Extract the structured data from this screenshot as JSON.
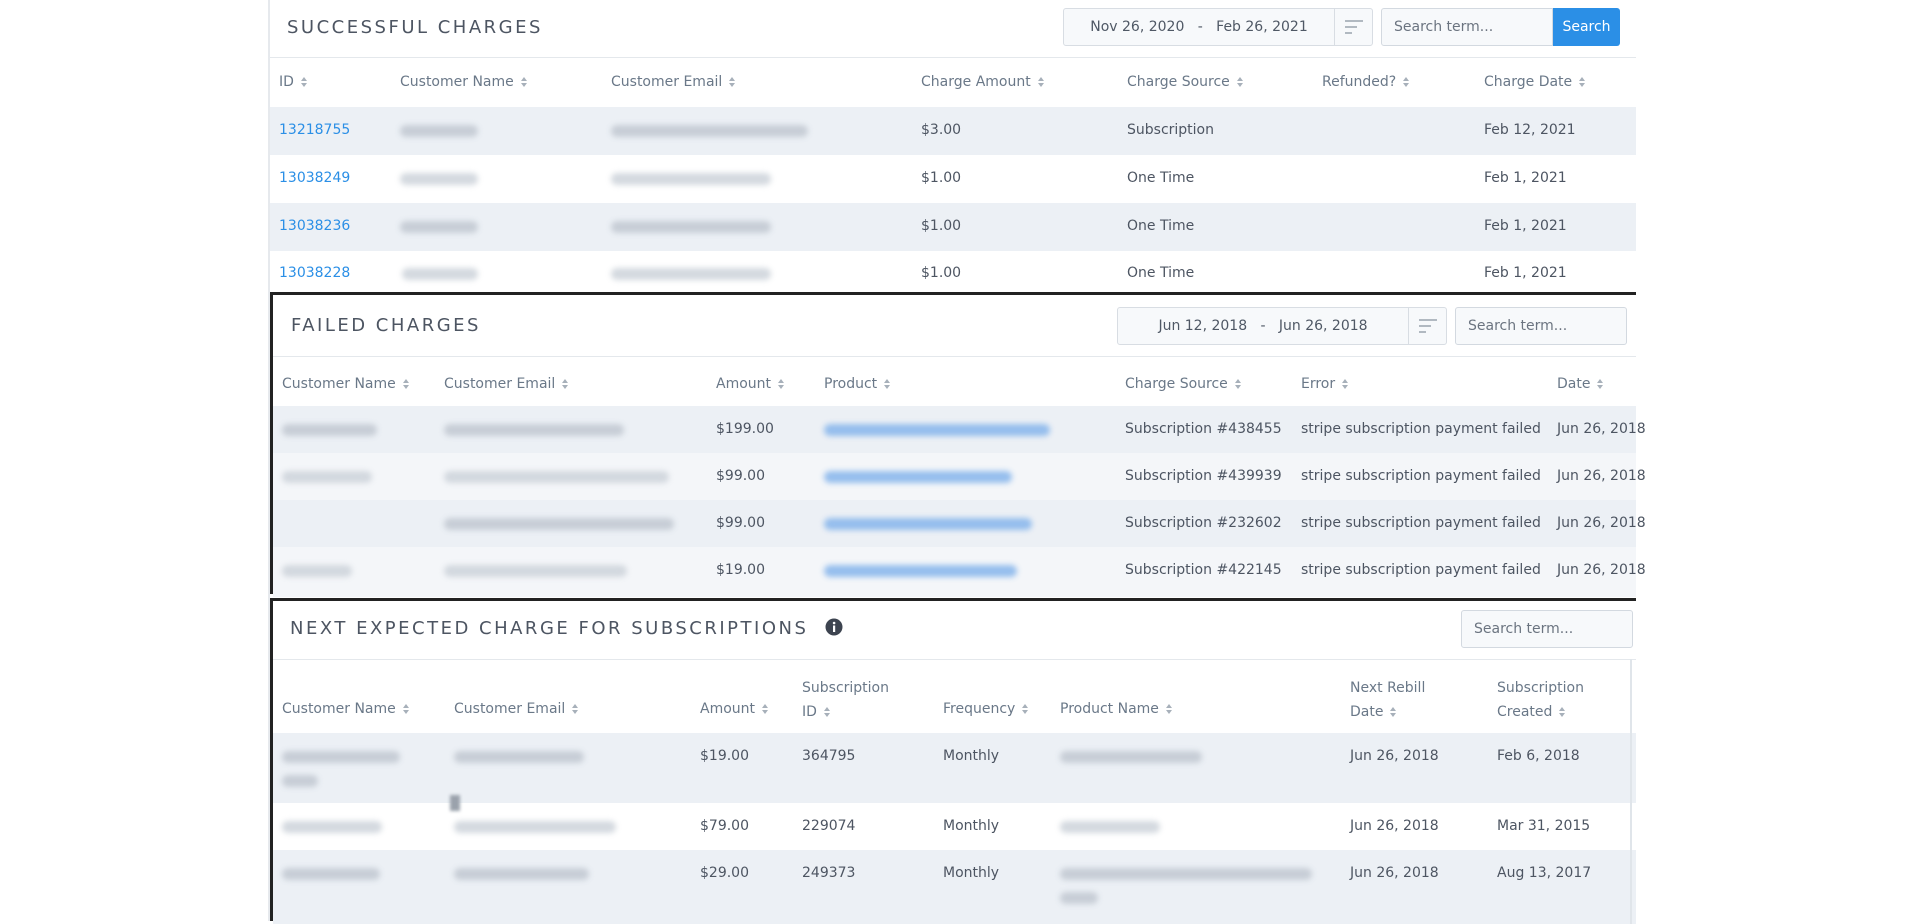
{
  "successful_charges": {
    "title": "SUCCESSFUL CHARGES",
    "date_start": "Nov 26, 2020",
    "date_sep": "-",
    "date_end": "Feb 26, 2021",
    "search_placeholder": "Search term...",
    "search_button": "Search",
    "columns": [
      "ID",
      "Customer Name",
      "Customer Email",
      "Charge Amount",
      "Charge Source",
      "Refunded?",
      "Charge Date"
    ],
    "rows": [
      {
        "id": "13218755",
        "amount": "$3.00",
        "source": "Subscription",
        "refunded": "",
        "date": "Feb 12, 2021"
      },
      {
        "id": "13038249",
        "amount": "$1.00",
        "source": "One Time",
        "refunded": "",
        "date": "Feb 1, 2021"
      },
      {
        "id": "13038236",
        "amount": "$1.00",
        "source": "One Time",
        "refunded": "",
        "date": "Feb 1, 2021"
      },
      {
        "id": "13038228",
        "amount": "$1.00",
        "source": "One Time",
        "refunded": "",
        "date": "Feb 1, 2021"
      }
    ]
  },
  "failed_charges": {
    "title": "FAILED CHARGES",
    "date_start": "Jun 12, 2018",
    "date_sep": "-",
    "date_end": "Jun 26, 2018",
    "search_placeholder": "Search term...",
    "columns": [
      "Customer Name",
      "Customer Email",
      "Amount",
      "Product",
      "Charge Source",
      "Error",
      "Date"
    ],
    "rows": [
      {
        "amount": "$199.00",
        "source": "Subscription #438455",
        "error": "stripe subscription payment failed",
        "date": "Jun 26, 2018"
      },
      {
        "amount": "$99.00",
        "source": "Subscription #439939",
        "error": "stripe subscription payment failed",
        "date": "Jun 26, 2018"
      },
      {
        "amount": "$99.00",
        "source": "Subscription #232602",
        "error": "stripe subscription payment failed",
        "date": "Jun 26, 2018"
      },
      {
        "amount": "$19.00",
        "source": "Subscription #422145",
        "error": "stripe subscription payment failed",
        "date": "Jun 26, 2018"
      }
    ]
  },
  "next_expected": {
    "title": "NEXT EXPECTED CHARGE FOR SUBSCRIPTIONS",
    "search_placeholder": "Search term...",
    "columns": {
      "customer_name": "Customer Name",
      "customer_email": "Customer Email",
      "amount": "Amount",
      "subscription_id_1": "Subscription",
      "subscription_id_2": "ID",
      "frequency": "Frequency",
      "product_name": "Product Name",
      "next_rebill_1": "Next Rebill",
      "next_rebill_2": "Date",
      "sub_created_1": "Subscription",
      "sub_created_2": "Created"
    },
    "rows": [
      {
        "amount": "$19.00",
        "sub_id": "364795",
        "frequency": "Monthly",
        "next_rebill": "Jun 26, 2018",
        "created": "Feb 6, 2018"
      },
      {
        "amount": "$79.00",
        "sub_id": "229074",
        "frequency": "Monthly",
        "next_rebill": "Jun 26, 2018",
        "created": "Mar 31, 2015"
      },
      {
        "amount": "$29.00",
        "sub_id": "249373",
        "frequency": "Monthly",
        "next_rebill": "Jun 26, 2018",
        "created": "Aug 13, 2017"
      }
    ]
  },
  "colors": {
    "accent": "#2b8fe6",
    "row_alt": "#ecf0f5",
    "text": "#4d5562",
    "header_text": "#6a7888"
  }
}
